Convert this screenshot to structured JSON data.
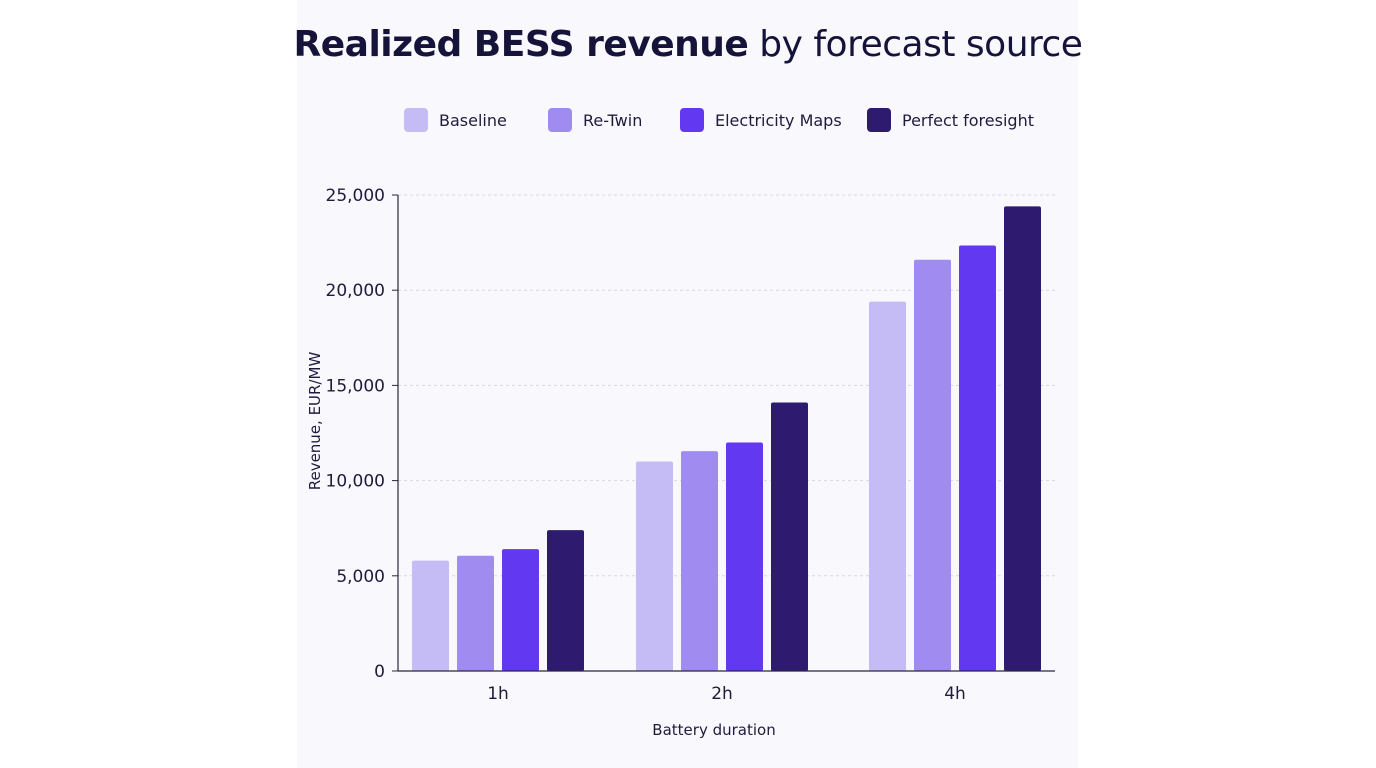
{
  "title": {
    "bold": "Realized BESS revenue",
    "light": "by forecast source"
  },
  "chart_data": {
    "type": "bar",
    "title": "Realized BESS revenue by forecast source",
    "categories": [
      "1h",
      "2h",
      "4h"
    ],
    "series": [
      {
        "name": "Baseline",
        "color": "#c5bbf5",
        "values": [
          5800,
          11000,
          19400
        ]
      },
      {
        "name": "Re-Twin",
        "color": "#a08cf0",
        "values": [
          6050,
          11550,
          21600
        ]
      },
      {
        "name": "Electricity Maps",
        "color": "#6238f0",
        "values": [
          6400,
          12000,
          22350
        ]
      },
      {
        "name": "Perfect foresight",
        "color": "#2e1a6e",
        "values": [
          7400,
          14100,
          24400
        ]
      }
    ],
    "xlabel": "Battery duration",
    "ylabel": "Revenue, EUR/MW",
    "ylim": [
      0,
      25000
    ],
    "yticks": [
      0,
      5000,
      10000,
      15000,
      20000,
      25000
    ],
    "ytick_labels": [
      "0",
      "5,000",
      "10,000",
      "15,000",
      "20,000",
      "25,000"
    ],
    "grid": true,
    "legend_position": "top"
  }
}
